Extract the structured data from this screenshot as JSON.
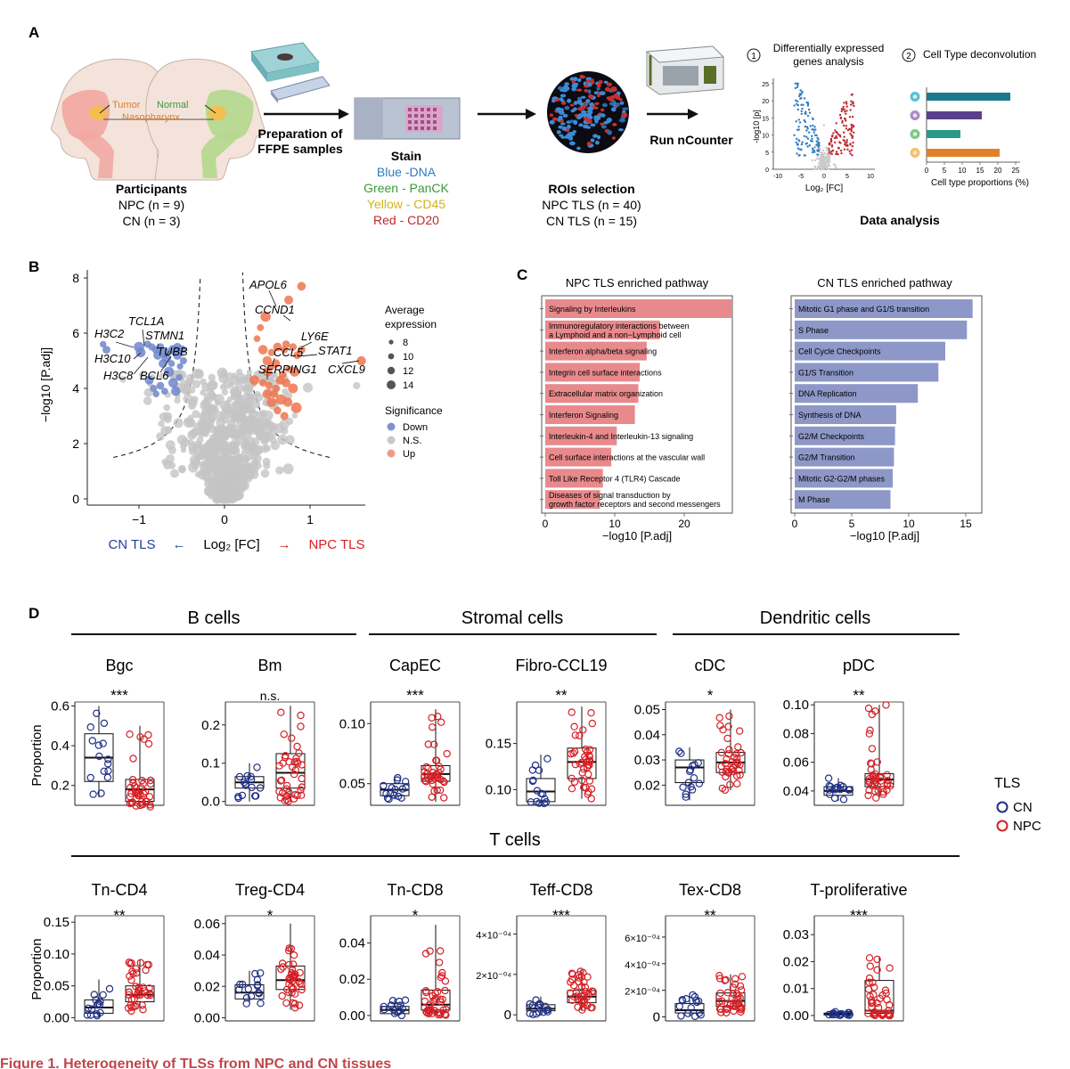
{
  "panel_letters": {
    "a": "A",
    "b": "B",
    "c": "C",
    "d": "D"
  },
  "panelA": {
    "tumor": "Tumor",
    "normal": "Normal",
    "nasopharynx": "Nasopharynx",
    "participants": "Participants",
    "npc_n": "NPC (n = 9)",
    "cn_n": "CN (n = 3)",
    "prep1": "Preparation of",
    "prep2": "FFPE samples",
    "stain": "Stain",
    "stains": [
      {
        "text": "Blue -DNA",
        "color": "#2f79c2"
      },
      {
        "text": "Green - PanCK",
        "color": "#3a9a3a"
      },
      {
        "text": "Yellow - CD45",
        "color": "#d4b21a"
      },
      {
        "text": "Red - CD20",
        "color": "#c0282d"
      }
    ],
    "roi": "ROIs selection",
    "npc_tls": "NPC TLS (n = 40)",
    "cn_tls": "CN TLS (n = 15)",
    "run": "Run nCounter",
    "step1_num": "1",
    "step1_l1": "Differentially expressed",
    "step1_l2": "genes analysis",
    "step2_num": "2",
    "step2": "Cell Type deconvolution",
    "data_analysis": "Data analysis",
    "mini_volcano": {
      "ylabel": "-log10 [p]",
      "xlabel": "Log₂ [FC]",
      "yticks": [
        "25",
        "20",
        "15",
        "10",
        "5",
        "0"
      ],
      "xticks": [
        "-10",
        "-5",
        "0",
        "5",
        "10"
      ]
    },
    "mini_bars": {
      "xlabel": "Cell type proportions (%)",
      "xticks": [
        "0",
        "5",
        "10",
        "15",
        "20",
        "25"
      ],
      "values": [
        23.5,
        15.5,
        9.5,
        20.5
      ],
      "colors": [
        "#1a7a8c",
        "#5b3f8c",
        "#2a9a88",
        "#e0812a"
      ],
      "dots": [
        "#56c0e0",
        "#a98ad4",
        "#79c98a",
        "#f4c36a"
      ]
    }
  },
  "panelB": {
    "ylabel": "−log10 [P.adj]",
    "xlabel": "Log₂ [FC]",
    "left_label": "CN TLS",
    "right_label": "NPC TLS",
    "arrow_left": "←",
    "arrow_right": "→",
    "yticks": [
      "0",
      "2",
      "4",
      "6",
      "8"
    ],
    "xticks": [
      "−1",
      "0",
      "1"
    ],
    "genes_down": [
      "H3C2",
      "TCL1A",
      "STMN1",
      "TUBB",
      "H3C10",
      "H3C8",
      "BCL6"
    ],
    "genes_up": [
      "APOL6",
      "CCND1",
      "LY6E",
      "CCL5",
      "STAT1",
      "SERPING1",
      "CXCL9"
    ],
    "legend_size_title": "Average expression",
    "legend_sizes": [
      "8",
      "10",
      "12",
      "14"
    ],
    "legend_sig_title": "Significance",
    "legend_sig": [
      {
        "label": "Down",
        "color": "#7f93cf"
      },
      {
        "label": "N.S.",
        "color": "#c8c8c8"
      },
      {
        "label": "Up",
        "color": "#ef9a87"
      }
    ]
  },
  "panelC": {
    "npc_title": "NPC TLS enriched pathway",
    "cn_title": "CN TLS enriched pathway",
    "xlabel": "−log10 [P.adj]",
    "npc_color": "#e88a8c",
    "cn_color": "#8d98c8",
    "npc_xticks": [
      "0",
      "10",
      "20"
    ],
    "cn_xticks": [
      "0",
      "5",
      "10",
      "15"
    ],
    "npc": [
      {
        "label": "Signaling by Interleukins",
        "value": 26.8
      },
      {
        "label": "Immunoregulatory interactions between|a Lymphoid and a non−Lymphoid cell",
        "value": 16.5
      },
      {
        "label": "Interferon alpha/beta signaling",
        "value": 14.6
      },
      {
        "label": "Integrin cell surface interactions",
        "value": 13.6
      },
      {
        "label": "Extracellular matrix organization",
        "value": 13.4
      },
      {
        "label": "Interferon Signaling",
        "value": 12.9
      },
      {
        "label": "Interleukin-4 and Interleukin-13 signaling",
        "value": 10.3
      },
      {
        "label": "Cell surface interactions at the vascular wall",
        "value": 9.5
      },
      {
        "label": "Toll Like Receptor 4 (TLR4) Cascade",
        "value": 8.3
      },
      {
        "label": "Diseases of signal transduction by|growth factor receptors and second messengers",
        "value": 7.9
      }
    ],
    "cn": [
      {
        "label": "Mitotic G1 phase and G1/S transition",
        "value": 15.6
      },
      {
        "label": "S Phase",
        "value": 15.1
      },
      {
        "label": "Cell Cycle Checkpoints",
        "value": 13.2
      },
      {
        "label": "G1/S Transition",
        "value": 12.6
      },
      {
        "label": "DNA Replication",
        "value": 10.8
      },
      {
        "label": "Synthesis of DNA",
        "value": 8.9
      },
      {
        "label": "G2/M Checkpoints",
        "value": 8.8
      },
      {
        "label": "G2/M Transition",
        "value": 8.7
      },
      {
        "label": "Mitotic G2-G2/M phases",
        "value": 8.6
      },
      {
        "label": "M Phase",
        "value": 8.4
      }
    ]
  },
  "panelD": {
    "groups_row1": [
      "B cells",
      "Stromal cells",
      "Dendritic cells"
    ],
    "group_row2": "T cells",
    "ylabel": "Proportion",
    "legend_title": "TLS",
    "legend": [
      {
        "label": "CN",
        "color": "#1f2f86"
      },
      {
        "label": "NPC",
        "color": "#d42026"
      }
    ],
    "row1": [
      {
        "title": "Bgc",
        "sig": "***",
        "ymin": 0.1,
        "ymax": 0.62,
        "ticks": [
          "0.2",
          "0.4",
          "0.6"
        ],
        "tickv": [
          0.2,
          0.4,
          0.6
        ],
        "cn": {
          "q1": 0.22,
          "med": 0.34,
          "q3": 0.46,
          "lo": 0.14,
          "hi": 0.6
        },
        "npc": {
          "q1": 0.12,
          "med": 0.18,
          "q3": 0.23,
          "lo": 0.09,
          "hi": 0.5
        }
      },
      {
        "title": "Bm",
        "sig": "n.s.",
        "ymin": -0.01,
        "ymax": 0.26,
        "ticks": [
          "0.0",
          "0.1",
          "0.2"
        ],
        "tickv": [
          0.0,
          0.1,
          0.2
        ],
        "cn": {
          "q1": 0.035,
          "med": 0.05,
          "q3": 0.065,
          "lo": 0.0,
          "hi": 0.1
        },
        "npc": {
          "q1": 0.035,
          "med": 0.075,
          "q3": 0.125,
          "lo": 0.0,
          "hi": 0.25
        }
      },
      {
        "title": "CapEC",
        "sig": "***",
        "ymin": 0.032,
        "ymax": 0.118,
        "ticks": [
          "0.05",
          "0.10"
        ],
        "tickv": [
          0.05,
          0.1
        ],
        "cn": {
          "q1": 0.04,
          "med": 0.045,
          "q3": 0.05,
          "lo": 0.037,
          "hi": 0.056
        },
        "npc": {
          "q1": 0.052,
          "med": 0.058,
          "q3": 0.065,
          "lo": 0.035,
          "hi": 0.112
        }
      },
      {
        "title": "Fibro-CCL19",
        "sig": "**",
        "ymin": 0.083,
        "ymax": 0.195,
        "ticks": [
          "0.10",
          "0.15"
        ],
        "tickv": [
          0.1,
          0.15
        ],
        "cn": {
          "q1": 0.087,
          "med": 0.098,
          "q3": 0.112,
          "lo": 0.085,
          "hi": 0.138
        },
        "npc": {
          "q1": 0.112,
          "med": 0.13,
          "q3": 0.145,
          "lo": 0.09,
          "hi": 0.19
        }
      },
      {
        "title": "cDC",
        "sig": "*",
        "ymin": 0.012,
        "ymax": 0.053,
        "ticks": [
          "0.02",
          "0.03",
          "0.04",
          "0.05"
        ],
        "tickv": [
          0.02,
          0.03,
          0.04,
          0.05
        ],
        "cn": {
          "q1": 0.021,
          "med": 0.027,
          "q3": 0.03,
          "lo": 0.014,
          "hi": 0.035
        },
        "npc": {
          "q1": 0.025,
          "med": 0.029,
          "q3": 0.033,
          "lo": 0.018,
          "hi": 0.05
        }
      },
      {
        "title": "pDC",
        "sig": "**",
        "ymin": 0.03,
        "ymax": 0.102,
        "ticks": [
          "0.04",
          "0.06",
          "0.08",
          "0.10"
        ],
        "tickv": [
          0.04,
          0.06,
          0.08,
          0.1
        ],
        "cn": {
          "q1": 0.037,
          "med": 0.04,
          "q3": 0.043,
          "lo": 0.033,
          "hi": 0.049
        },
        "npc": {
          "q1": 0.043,
          "med": 0.048,
          "q3": 0.052,
          "lo": 0.035,
          "hi": 0.1
        }
      }
    ],
    "row2": [
      {
        "title": "Tn-CD4",
        "sig": "**",
        "ymin": -0.005,
        "ymax": 0.16,
        "ticks": [
          "0.00",
          "0.05",
          "0.10",
          "0.15"
        ],
        "tickv": [
          0.0,
          0.05,
          0.1,
          0.15
        ],
        "cn": {
          "q1": 0.007,
          "med": 0.016,
          "q3": 0.028,
          "lo": 0.0,
          "hi": 0.06
        },
        "npc": {
          "q1": 0.025,
          "med": 0.036,
          "q3": 0.05,
          "lo": 0.01,
          "hi": 0.09
        }
      },
      {
        "title": "Treg-CD4",
        "sig": "*",
        "ymin": -0.002,
        "ymax": 0.065,
        "ticks": [
          "0.00",
          "0.02",
          "0.04",
          "0.06"
        ],
        "tickv": [
          0.0,
          0.02,
          0.04,
          0.06
        ],
        "cn": {
          "q1": 0.012,
          "med": 0.016,
          "q3": 0.021,
          "lo": 0.008,
          "hi": 0.03
        },
        "npc": {
          "q1": 0.018,
          "med": 0.024,
          "q3": 0.033,
          "lo": 0.005,
          "hi": 0.06
        }
      },
      {
        "title": "Tn-CD8",
        "sig": "*",
        "ymin": -0.003,
        "ymax": 0.055,
        "ticks": [
          "0.00",
          "0.02",
          "0.04"
        ],
        "tickv": [
          0.0,
          0.02,
          0.04
        ],
        "cn": {
          "q1": 0.001,
          "med": 0.003,
          "q3": 0.005,
          "lo": 0.0,
          "hi": 0.009
        },
        "npc": {
          "q1": 0.003,
          "med": 0.006,
          "q3": 0.014,
          "lo": 0.0,
          "hi": 0.05
        }
      },
      {
        "title": "Teff-CD8",
        "sig": "***",
        "ymin": -3e-05,
        "ymax": 0.00049,
        "ticks": [
          "0",
          "2x10−04",
          "4x10−04"
        ],
        "tickv": [
          0.0,
          0.0002,
          0.0004
        ],
        "cn": {
          "q1": 2e-05,
          "med": 3e-05,
          "q3": 5e-05,
          "lo": 0.0,
          "hi": 9e-05
        },
        "npc": {
          "q1": 6e-05,
          "med": 9e-05,
          "q3": 0.00012,
          "lo": 2e-05,
          "hi": 0.00022
        }
      },
      {
        "title": "Tex-CD8",
        "sig": "**",
        "ymin": -3e-05,
        "ymax": 0.00076,
        "ticks": [
          "0",
          "2x10−04",
          "4x10−04",
          "6x10−04"
        ],
        "tickv": [
          0.0,
          0.0002,
          0.0004,
          0.0006
        ],
        "cn": {
          "q1": 3e-05,
          "med": 5e-05,
          "q3": 0.0001,
          "lo": 0.0,
          "hi": 0.00018
        },
        "npc": {
          "q1": 8e-05,
          "med": 0.00012,
          "q3": 0.00018,
          "lo": 3e-05,
          "hi": 0.00032
        }
      },
      {
        "title": "T-proliferative",
        "sig": "***",
        "ymin": -0.002,
        "ymax": 0.037,
        "ticks": [
          "0.00",
          "0.01",
          "0.02",
          "0.03"
        ],
        "tickv": [
          0.0,
          0.01,
          0.02,
          0.03
        ],
        "cn": {
          "q1": 0.0002,
          "med": 0.0005,
          "q3": 0.0009,
          "lo": 0.0,
          "hi": 0.0015
        },
        "npc": {
          "q1": 0.0008,
          "med": 0.0018,
          "q3": 0.013,
          "lo": 0.0,
          "hi": 0.022
        }
      }
    ]
  },
  "caption": "Figure 1.  Heterogeneity of TLSs from NPC and CN tissues"
}
